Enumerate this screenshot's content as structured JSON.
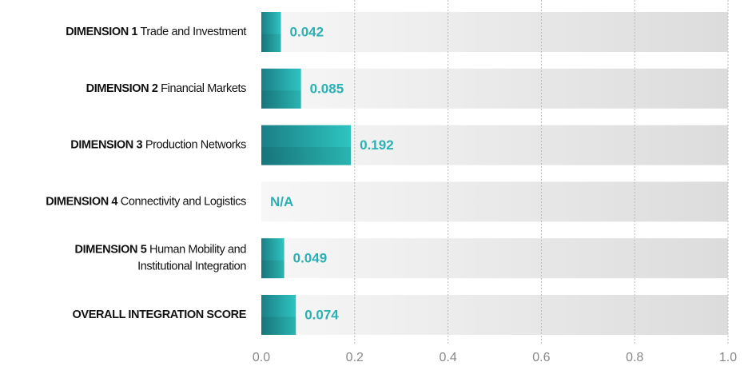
{
  "chart_data": {
    "type": "bar",
    "orientation": "horizontal",
    "categories": [
      {
        "code": "DIMENSION 1",
        "name": [
          "Trade and Investment"
        ]
      },
      {
        "code": "DIMENSION 2",
        "name": [
          "Financial Markets"
        ]
      },
      {
        "code": "DIMENSION 3",
        "name": [
          "Production Networks"
        ]
      },
      {
        "code": "DIMENSION 4",
        "name": [
          "Connectivity and Logistics"
        ]
      },
      {
        "code": "DIMENSION 5",
        "name": [
          "Human Mobility and",
          "Institutional Integration"
        ]
      },
      {
        "code": "OVERALL INTEGRATION SCORE"
      }
    ],
    "values": [
      0.042,
      0.085,
      0.192,
      null,
      0.049,
      0.074
    ],
    "value_labels": [
      "0.042",
      "0.085",
      "0.192",
      "N/A",
      "0.049",
      "0.074"
    ],
    "color": "#24b3b3",
    "xlim": [
      0,
      1
    ],
    "xticks": [
      {
        "value": 0,
        "label": "0.0"
      },
      0.2,
      0.4,
      0.6,
      0.8,
      {
        "value": 1,
        "label": "1.0"
      }
    ],
    "grid": true
  }
}
